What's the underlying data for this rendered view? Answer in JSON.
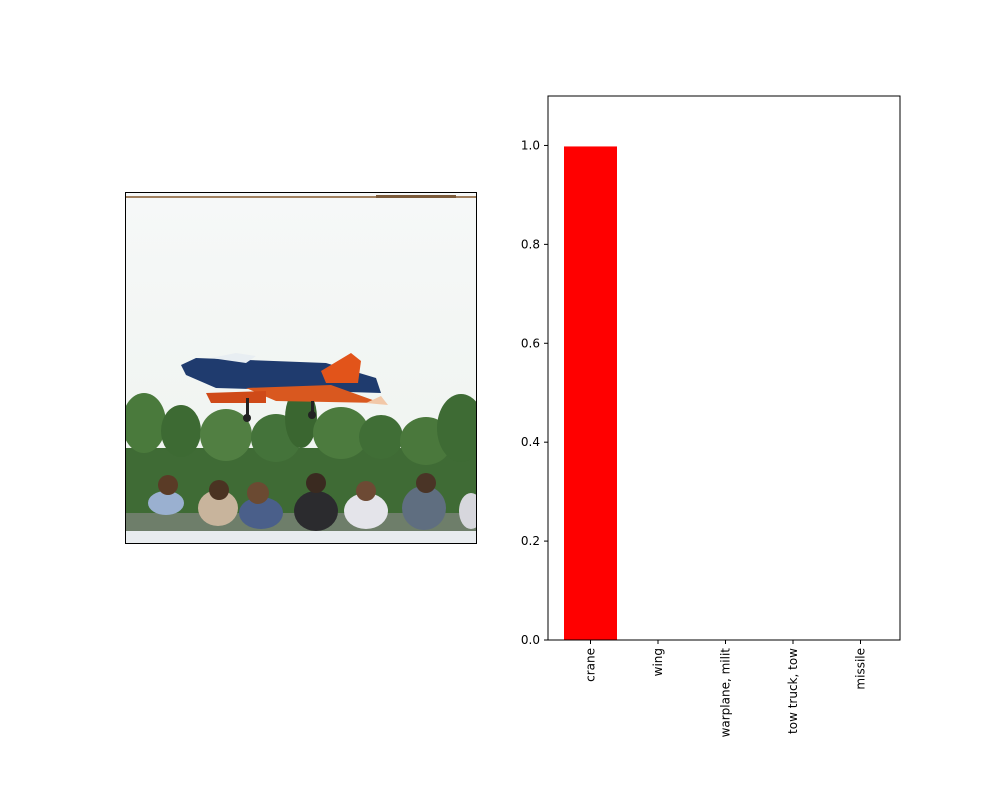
{
  "photo": {
    "subject": "airplane-photo"
  },
  "chart_data": {
    "type": "bar",
    "categories": [
      "crane",
      "wing",
      "warplane, milit",
      "tow truck, tow",
      "missile"
    ],
    "values": [
      0.998,
      0.0008,
      0.0005,
      0.0003,
      0.0002
    ],
    "ylim": [
      0,
      1.1
    ],
    "yticks": [
      0.0,
      0.2,
      0.4,
      0.6,
      0.8,
      1.0
    ],
    "ytick_labels": [
      "0.0",
      "0.2",
      "0.4",
      "0.6",
      "0.8",
      "1.0"
    ],
    "bar_color": "#ff0000",
    "grid": false,
    "title": "",
    "xlabel": "",
    "ylabel": ""
  }
}
